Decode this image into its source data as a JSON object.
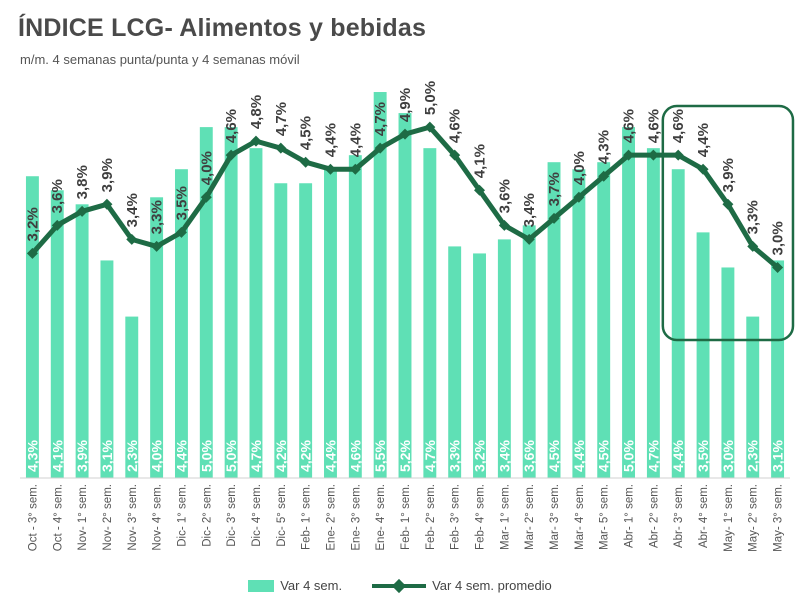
{
  "chart_data": {
    "type": "bar",
    "title": "ÍNDICE LCG- Alimentos y bebidas",
    "subtitle": "m/m. 4 semanas punta/punta y 4 semanas móvil",
    "categories": [
      "Oct - 3° sem.",
      "Oct - 4° sem.",
      "Nov- 1° sem.",
      "Nov- 2° sem.",
      "Nov- 3° sem.",
      "Nov- 4° sem.",
      "Dic- 1° sem.",
      "Dic- 2° sem.",
      "Dic- 3° sem.",
      "Dic- 4° sem.",
      "Dic- 5° sem.",
      "Feb- 1° sem.",
      "Ene- 2° sem.",
      "Ene- 3° sem.",
      "Ene- 4° sem.",
      "Feb- 1° sem.",
      "Feb- 2° sem.",
      "Feb- 3° sem.",
      "Feb- 4° sem.",
      "Mar- 1° sem.",
      "Mar- 2° sem.",
      "Mar- 3° sem.",
      "Mar- 4° sem.",
      "Mar- 5° sem.",
      "Abr- 1° sem.",
      "Abr- 2° sem.",
      "Abr- 3° sem.",
      "Abr- 4° sem.",
      "May- 1° sem.",
      "May- 2° sem.",
      "May- 3° sem."
    ],
    "series": [
      {
        "name": "Var 4 sem.",
        "kind": "bar",
        "color": "#5fe0b5",
        "values": [
          4.3,
          4.1,
          3.9,
          3.1,
          2.3,
          4.0,
          4.4,
          5.0,
          5.0,
          4.7,
          4.2,
          4.2,
          4.4,
          4.6,
          5.5,
          5.2,
          4.7,
          3.3,
          3.2,
          3.4,
          3.6,
          4.5,
          4.4,
          4.5,
          5.0,
          4.7,
          4.4,
          3.5,
          3.0,
          2.3,
          3.1
        ],
        "labels": [
          "4,3%",
          "4,1%",
          "3,9%",
          "3,1%",
          "2,3%",
          "4,0%",
          "4,4%",
          "5,0%",
          "5,0%",
          "4,7%",
          "4,2%",
          "4,2%",
          "4,4%",
          "4,6%",
          "5,5%",
          "5,2%",
          "4,7%",
          "3,3%",
          "3,2%",
          "3,4%",
          "3,6%",
          "4,5%",
          "4,4%",
          "4,5%",
          "5,0%",
          "4,7%",
          "4,4%",
          "3,5%",
          "3,0%",
          "2,3%",
          "3,1%"
        ]
      },
      {
        "name": "Var 4 sem. promedio",
        "kind": "line",
        "color": "#1e6b45",
        "values": [
          3.2,
          3.6,
          3.8,
          3.9,
          3.4,
          3.3,
          3.5,
          4.0,
          4.6,
          4.8,
          4.7,
          4.5,
          4.4,
          4.4,
          4.7,
          4.9,
          5.0,
          4.6,
          4.1,
          3.6,
          3.4,
          3.7,
          4.0,
          4.3,
          4.6,
          4.6,
          4.6,
          4.4,
          3.9,
          3.3,
          3.0
        ],
        "labels": [
          "3,2%",
          "3,6%",
          "3,8%",
          "3,9%",
          "3,4%",
          "3,3%",
          "3,5%",
          "4,0%",
          "4,6%",
          "4,8%",
          "4,7%",
          "4,5%",
          "4,4%",
          "4,4%",
          "4,7%",
          "4,9%",
          "5,0%",
          "4,6%",
          "4,1%",
          "3,6%",
          "3,4%",
          "3,7%",
          "4,0%",
          "4,3%",
          "4,6%",
          "4,6%",
          "4,6%",
          "4,4%",
          "3,9%",
          "3,3%",
          "3,0%"
        ]
      }
    ],
    "ylim": [
      0,
      5.6
    ],
    "grid": false,
    "highlight": {
      "from_index": 26,
      "to_index": 30,
      "color": "#1e6b45"
    },
    "legend_position": "bottom"
  },
  "legend": {
    "bar_label": "Var 4 sem.",
    "line_label": "Var 4 sem. promedio"
  }
}
